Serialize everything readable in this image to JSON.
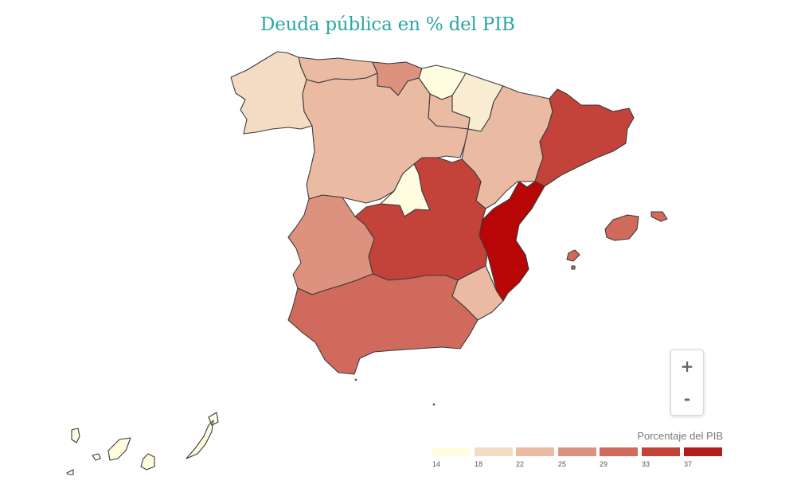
{
  "title": "Deuda pública en % del PIB",
  "zoom": {
    "in_label": "+",
    "out_label": "-"
  },
  "legend": {
    "title": "Porcentaje del PIB",
    "bins": [
      {
        "label": "14",
        "color": "#fefde0"
      },
      {
        "label": "18",
        "color": "#f3dcc3"
      },
      {
        "label": "22",
        "color": "#ebbaa3"
      },
      {
        "label": "25",
        "color": "#dd9280"
      },
      {
        "label": "29",
        "color": "#cf6a5c"
      },
      {
        "label": "33",
        "color": "#c3433b"
      },
      {
        "label": "37",
        "color": "#b51c1c"
      }
    ]
  },
  "regions": [
    {
      "name": "Galicia",
      "color": "#f3dcc3"
    },
    {
      "name": "Asturias",
      "color": "#ebbaa3"
    },
    {
      "name": "Cantabria",
      "color": "#dd9280"
    },
    {
      "name": "País Vasco",
      "color": "#fefde0"
    },
    {
      "name": "Navarra",
      "color": "#f8ecd2"
    },
    {
      "name": "La Rioja",
      "color": "#ebbaa3"
    },
    {
      "name": "Castilla y León",
      "color": "#ebbaa3"
    },
    {
      "name": "Aragón",
      "color": "#ebbaa3"
    },
    {
      "name": "Cataluña",
      "color": "#c3433b"
    },
    {
      "name": "Madrid",
      "color": "#fefde0"
    },
    {
      "name": "Castilla-La Mancha",
      "color": "#c3433b"
    },
    {
      "name": "Comunidad Valenciana",
      "color": "#b80505"
    },
    {
      "name": "Extremadura",
      "color": "#dd9280"
    },
    {
      "name": "Andalucía",
      "color": "#ebbaa3"
    },
    {
      "name": "Murcia",
      "color": "#cf6a5c"
    },
    {
      "name": "Illes Balears",
      "color": "#cf6a5c"
    },
    {
      "name": "Canarias",
      "color": "#fefde0"
    }
  ]
}
